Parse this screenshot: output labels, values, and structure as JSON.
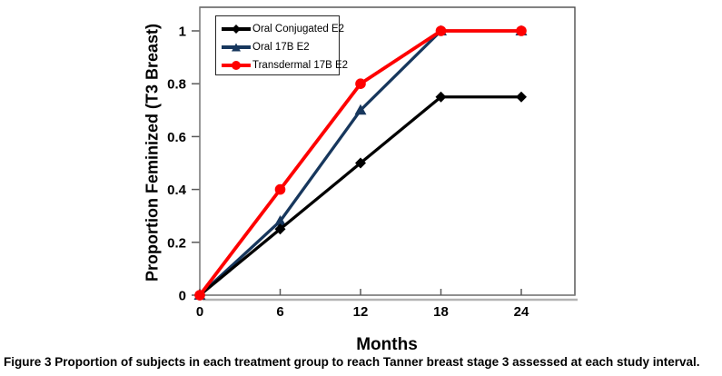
{
  "figure": {
    "caption_prefix": "Figure 3",
    "caption_text": "Proportion of subjects in each treatment group to reach Tanner breast stage 3 assessed at each study interval."
  },
  "chart_data": {
    "type": "line",
    "title": "",
    "xlabel": "Months",
    "ylabel": "Proportion Feminized (T3 Breast)",
    "x": [
      0,
      6,
      12,
      18,
      24
    ],
    "xticks": [
      "0",
      "6",
      "12",
      "18",
      "24"
    ],
    "yticks": [
      "0",
      "0.2",
      "0.4",
      "0.6",
      "0.8",
      "1"
    ],
    "xlim": [
      0,
      28
    ],
    "ylim": [
      0,
      1.09
    ],
    "grid": false,
    "legend_position": "top-left-inside",
    "series": [
      {
        "name": "Oral Conjugated E2",
        "marker": "diamond",
        "color": "#000000",
        "values": [
          0,
          0.25,
          0.5,
          0.75,
          0.75
        ]
      },
      {
        "name": "Oral 17B E2",
        "marker": "triangle",
        "color": "#17375d",
        "values": [
          0,
          0.28,
          0.7,
          1,
          1
        ]
      },
      {
        "name": "Transdermal 17B E2",
        "marker": "circle",
        "color": "#fe0000",
        "values": [
          0,
          0.4,
          0.8,
          1,
          1
        ]
      }
    ],
    "colors": {
      "frame": "#404040",
      "axis": "#7f7f7f",
      "tick": "#595959",
      "shadow": "#b3b3b3"
    }
  }
}
